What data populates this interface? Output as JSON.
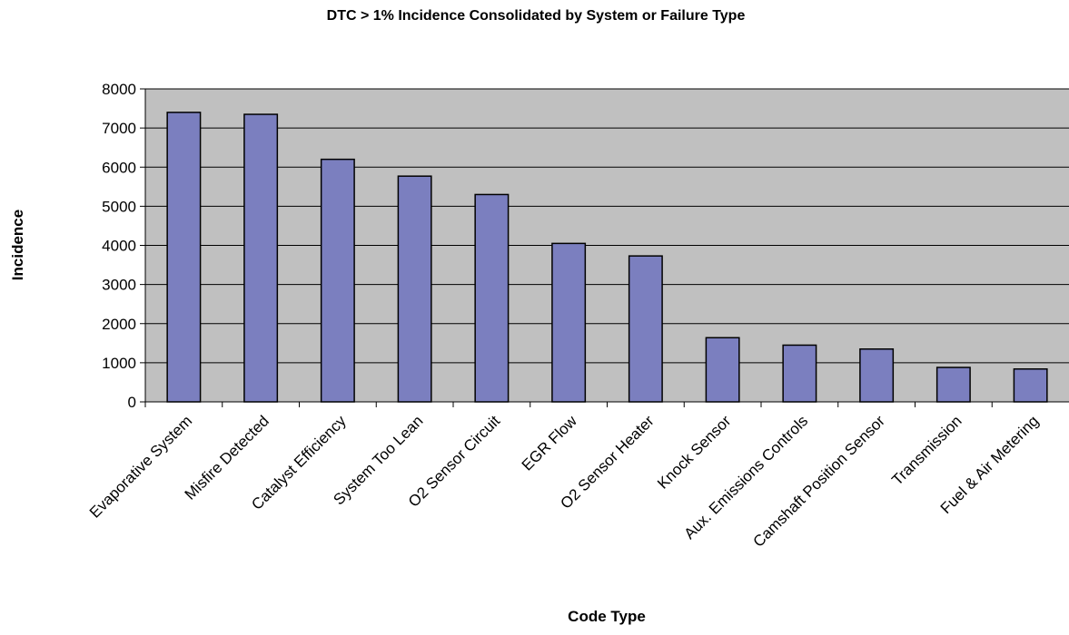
{
  "chart_data": {
    "type": "bar",
    "title": "DTC > 1% Incidence Consolidated by System or Failure Type",
    "xlabel": "Code Type",
    "ylabel": "Incidence",
    "ylim": [
      0,
      8000
    ],
    "yticks": [
      0,
      1000,
      2000,
      3000,
      4000,
      5000,
      6000,
      7000,
      8000
    ],
    "grid": true,
    "categories": [
      "Evaporative System",
      "Misfire Detected",
      "Catalyst Efficiency",
      "System Too Lean",
      "O2 Sensor Circuit",
      "EGR Flow",
      "O2 Sensor Heater",
      "Knock Sensor",
      "Aux. Emissions Controls",
      "Camshaft Position Sensor",
      "Transmission",
      "Fuel & Air Metering"
    ],
    "values": [
      7400,
      7350,
      6200,
      5770,
      5300,
      4050,
      3730,
      1640,
      1450,
      1350,
      880,
      840
    ]
  },
  "colors": {
    "plot_background": "#c0c0c0",
    "bar_fill": "#7b7fbf",
    "bar_stroke": "#000000",
    "gridline": "#000000"
  }
}
